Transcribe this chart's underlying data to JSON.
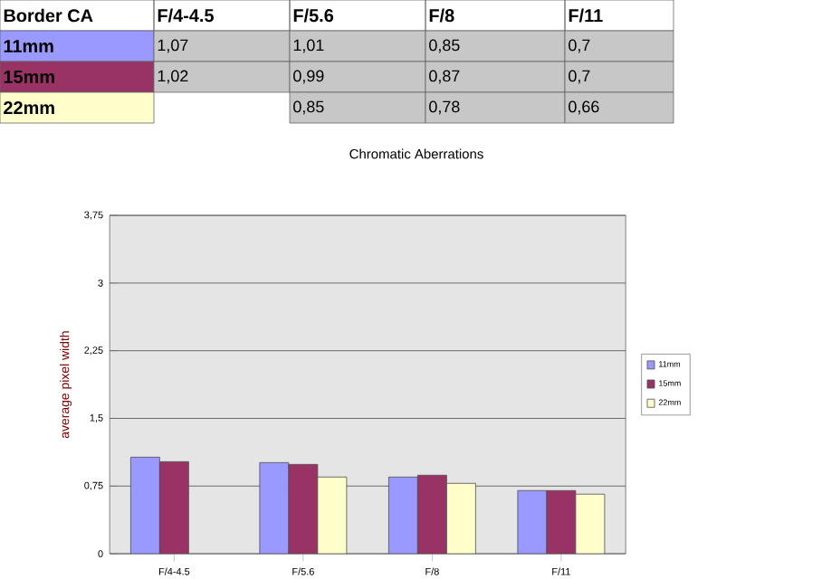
{
  "chart_data": {
    "type": "bar",
    "title": "Chromatic Aberrations",
    "ylabel": "average pixel width",
    "legend_title": "Border CA",
    "categories": [
      "F/4-4.5",
      "F/5.6",
      "F/8",
      "F/11"
    ],
    "series": [
      {
        "name": "11mm",
        "color": "#9999ff",
        "values": [
          1.07,
          1.01,
          0.85,
          0.7
        ],
        "value_labels": [
          "1,07",
          "1,01",
          "0,85",
          "0,7"
        ]
      },
      {
        "name": "15mm",
        "color": "#993366",
        "values": [
          1.02,
          0.99,
          0.87,
          0.7
        ],
        "value_labels": [
          "1,02",
          "0,99",
          "0,87",
          "0,7"
        ]
      },
      {
        "name": "22mm",
        "color": "#ffffcc",
        "values": [
          null,
          0.85,
          0.78,
          0.66
        ],
        "value_labels": [
          null,
          "0,85",
          "0,78",
          "0,66"
        ]
      }
    ],
    "ylim": [
      0,
      3.75
    ],
    "yticks": [
      0,
      {
        "value": 0.75,
        "label": "0,75"
      },
      {
        "value": 1.5,
        "label": "1,5"
      },
      {
        "value": 2.25,
        "label": "2,25"
      },
      3,
      {
        "value": 3.75,
        "label": "3,75"
      }
    ],
    "grid": "y",
    "legend": "right"
  }
}
